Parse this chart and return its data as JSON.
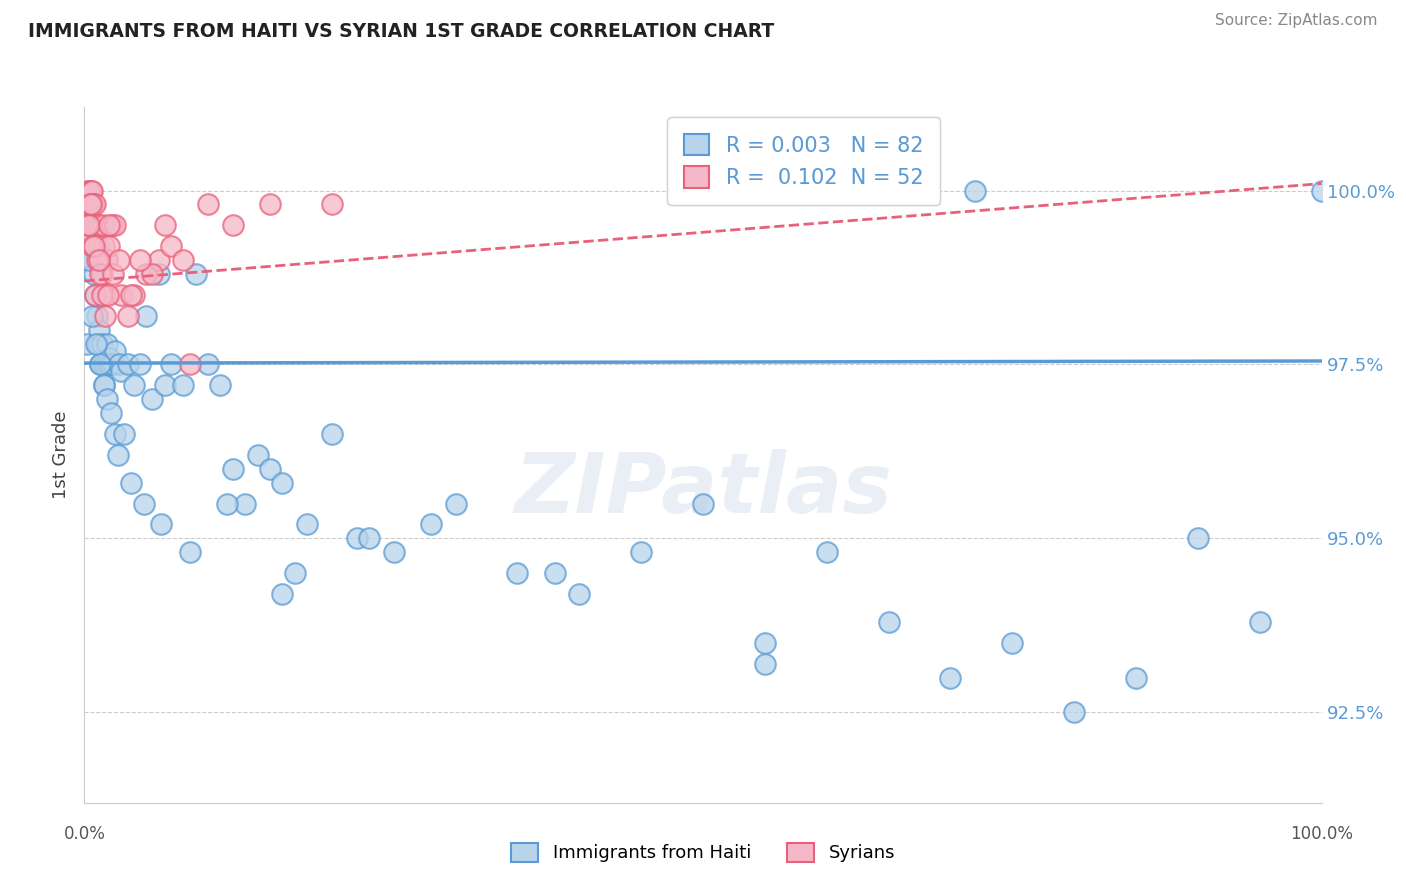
{
  "title": "IMMIGRANTS FROM HAITI VS SYRIAN 1ST GRADE CORRELATION CHART",
  "source_text": "Source: ZipAtlas.com",
  "ylabel": "1st Grade",
  "xlim": [
    0.0,
    100.0
  ],
  "ylim": [
    91.2,
    101.2
  ],
  "yticks": [
    92.5,
    95.0,
    97.5,
    100.0
  ],
  "ytick_labels": [
    "92.5%",
    "95.0%",
    "97.5%",
    "100.0%"
  ],
  "haiti_R": "0.003",
  "haiti_N": "82",
  "syrian_R": "0.102",
  "syrian_N": "52",
  "haiti_color": "#b8d4ea",
  "syrian_color": "#f5b8c8",
  "haiti_edge_color": "#5b9bd5",
  "syrian_edge_color": "#e8607a",
  "haiti_line_color": "#5b9bd5",
  "syrian_line_color": "#e8607a",
  "watermark": "ZIPatlas",
  "haiti_scatter_x": [
    0.2,
    0.3,
    0.4,
    0.5,
    0.6,
    0.7,
    0.8,
    0.9,
    1.0,
    1.1,
    1.2,
    1.3,
    1.4,
    1.5,
    1.6,
    1.7,
    1.8,
    1.9,
    2.0,
    2.1,
    2.3,
    2.5,
    2.8,
    3.0,
    3.5,
    4.0,
    4.5,
    5.0,
    5.5,
    6.0,
    6.5,
    7.0,
    8.0,
    9.0,
    10.0,
    11.0,
    12.0,
    13.0,
    14.0,
    15.0,
    16.0,
    17.0,
    18.0,
    20.0,
    22.0,
    25.0,
    28.0,
    30.0,
    35.0,
    40.0,
    45.0,
    50.0,
    55.0,
    60.0,
    65.0,
    70.0,
    75.0,
    80.0,
    85.0,
    90.0,
    95.0,
    100.0,
    0.35,
    0.65,
    0.95,
    1.25,
    1.55,
    1.85,
    2.15,
    2.45,
    2.75,
    3.2,
    3.8,
    4.8,
    6.2,
    8.5,
    11.5,
    16.0,
    23.0,
    38.0,
    55.0,
    72.0
  ],
  "haiti_scatter_y": [
    97.8,
    99.5,
    100.0,
    99.8,
    99.5,
    99.0,
    98.8,
    98.5,
    98.2,
    97.8,
    98.0,
    97.5,
    97.8,
    97.5,
    97.2,
    97.5,
    97.8,
    97.5,
    97.6,
    97.5,
    97.5,
    97.7,
    97.5,
    97.4,
    97.5,
    97.2,
    97.5,
    98.2,
    97.0,
    98.8,
    97.2,
    97.5,
    97.2,
    98.8,
    97.5,
    97.2,
    96.0,
    95.5,
    96.2,
    96.0,
    95.8,
    94.5,
    95.2,
    96.5,
    95.0,
    94.8,
    95.2,
    95.5,
    94.5,
    94.2,
    94.8,
    95.5,
    93.5,
    94.8,
    93.8,
    93.0,
    93.5,
    92.5,
    93.0,
    95.0,
    93.8,
    100.0,
    99.0,
    98.2,
    97.8,
    97.5,
    97.2,
    97.0,
    96.8,
    96.5,
    96.2,
    96.5,
    95.8,
    95.5,
    95.2,
    94.8,
    95.5,
    94.2,
    95.0,
    94.5,
    93.2,
    100.0
  ],
  "syrian_scatter_x": [
    0.2,
    0.3,
    0.4,
    0.5,
    0.6,
    0.7,
    0.8,
    0.9,
    1.0,
    1.1,
    1.2,
    1.3,
    1.4,
    1.5,
    1.6,
    1.7,
    1.8,
    2.0,
    2.2,
    2.5,
    3.0,
    3.5,
    4.0,
    5.0,
    6.0,
    7.0,
    8.0,
    12.0,
    15.0,
    20.0,
    0.25,
    0.45,
    0.65,
    0.85,
    1.05,
    1.25,
    1.45,
    1.65,
    1.9,
    2.3,
    2.8,
    3.8,
    5.5,
    8.5,
    0.35,
    0.55,
    0.75,
    1.15,
    2.0,
    4.5,
    6.5,
    10.0
  ],
  "syrian_scatter_y": [
    99.8,
    100.0,
    100.0,
    100.0,
    100.0,
    99.8,
    99.5,
    99.8,
    99.5,
    99.2,
    99.5,
    99.0,
    98.8,
    99.5,
    99.2,
    98.5,
    99.0,
    99.2,
    99.5,
    99.5,
    98.5,
    98.2,
    98.5,
    98.8,
    99.0,
    99.2,
    99.0,
    99.5,
    99.8,
    99.8,
    99.5,
    99.8,
    99.2,
    98.5,
    99.0,
    98.8,
    98.5,
    98.2,
    98.5,
    98.8,
    99.0,
    98.5,
    98.8,
    97.5,
    99.5,
    99.8,
    99.2,
    99.0,
    99.5,
    99.0,
    99.5,
    99.8
  ],
  "haiti_trend_x": [
    0.0,
    100.0
  ],
  "haiti_trend_y": [
    97.52,
    97.55
  ],
  "syrian_trend_x": [
    0.0,
    100.0
  ],
  "syrian_trend_y": [
    98.7,
    100.1
  ],
  "background_color": "#ffffff",
  "grid_color": "#cccccc",
  "title_color": "#222222",
  "axis_label_color": "#555555",
  "right_tick_color": "#5b9bd5"
}
